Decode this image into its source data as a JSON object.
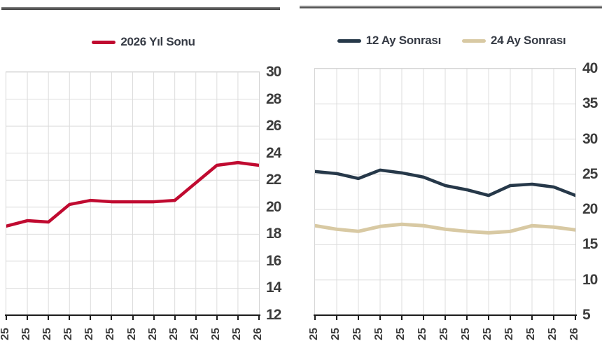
{
  "colors": {
    "red_line": "#c00a30",
    "navy_line": "#263849",
    "tan_line": "#d8c9a3",
    "gridline": "#dcdcdc",
    "axis": "#1c1c1c",
    "tick_label": "#3c3c3c",
    "legend_text": "#363b45"
  },
  "chart_data": [
    {
      "type": "line",
      "title": "",
      "legend_position": "top-center",
      "grid": true,
      "ylim": [
        12,
        30
      ],
      "y_ticks": [
        30,
        28,
        26,
        24,
        22,
        20,
        18,
        16,
        14,
        12
      ],
      "x_tick_labels": [
        "25",
        "25",
        "25",
        "25",
        "25",
        "25",
        "25",
        "25",
        "25",
        "25",
        "25",
        "25",
        "26"
      ],
      "series": [
        {
          "name": "2026 Yıl Sonu",
          "color": "#c00a30",
          "values": [
            18.6,
            19.0,
            18.9,
            20.2,
            20.5,
            20.4,
            20.4,
            20.4,
            20.5,
            21.8,
            23.1,
            23.3,
            23.1
          ]
        }
      ]
    },
    {
      "type": "line",
      "title": "",
      "legend_position": "top-center",
      "grid": true,
      "ylim": [
        5,
        40
      ],
      "y_ticks": [
        40,
        35,
        30,
        25,
        20,
        15,
        10,
        5
      ],
      "x_tick_labels": [
        "25",
        "25",
        "25",
        "25",
        "25",
        "25",
        "25",
        "25",
        "25",
        "25",
        "25",
        "25",
        "26"
      ],
      "series": [
        {
          "name": "12 Ay Sonrası",
          "color": "#263849",
          "values": [
            25.4,
            25.1,
            24.4,
            25.6,
            25.2,
            24.6,
            23.4,
            22.8,
            22.0,
            23.4,
            23.6,
            23.2,
            22.0
          ]
        },
        {
          "name": "24 Ay Sonrası",
          "color": "#d8c9a3",
          "values": [
            17.7,
            17.2,
            16.9,
            17.6,
            17.9,
            17.7,
            17.2,
            16.9,
            16.7,
            16.9,
            17.7,
            17.5,
            17.1
          ]
        }
      ]
    }
  ]
}
